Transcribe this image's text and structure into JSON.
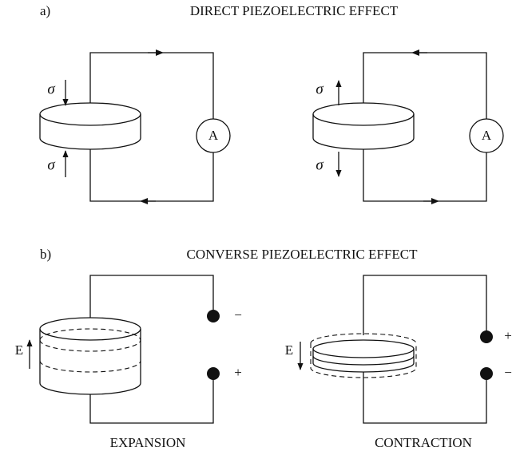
{
  "panel_a": {
    "letter": "a)",
    "title": "DIRECT PIEZOELECTRIC EFFECT",
    "left": {
      "stress_top": "σ",
      "stress_bottom": "σ",
      "meter": "A"
    },
    "right": {
      "stress_top": "σ",
      "stress_bottom": "σ",
      "meter": "A"
    }
  },
  "panel_b": {
    "letter": "b)",
    "title": "CONVERSE PIEZOELECTRIC EFFECT",
    "left": {
      "field": "E",
      "terminal_top": "−",
      "terminal_bottom": "+",
      "caption": "EXPANSION"
    },
    "right": {
      "field": "E",
      "terminal_top": "+",
      "terminal_bottom": "−",
      "caption": "CONTRACTION"
    }
  }
}
